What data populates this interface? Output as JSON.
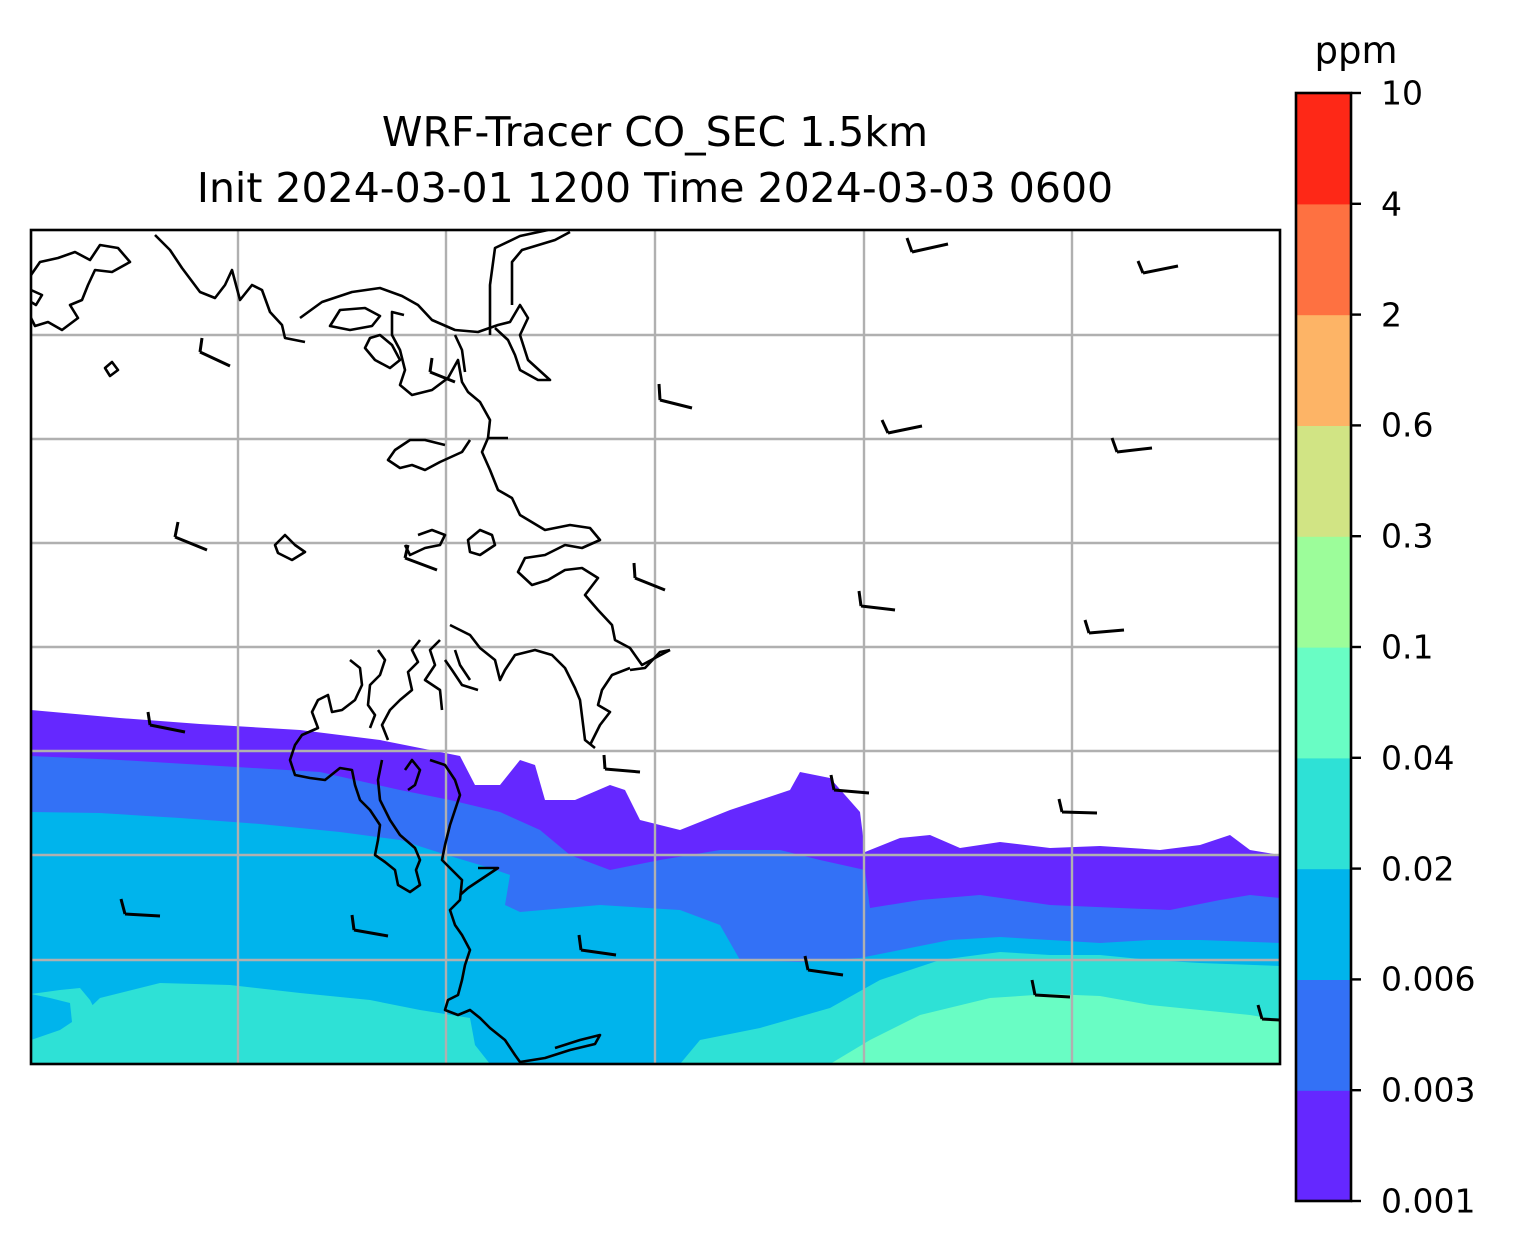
{
  "title": {
    "line1": "WRF-Tracer CO_SEC 1.5km",
    "line2": "Init 2024-03-01 1200 Time 2024-03-03 0600"
  },
  "colorbar": {
    "unit": "ppm",
    "levels": [
      {
        "label": "0.001",
        "color": "#6528ff"
      },
      {
        "label": "0.003",
        "color": "#3371f6"
      },
      {
        "label": "0.006",
        "color": "#00b4ec"
      },
      {
        "label": "0.02",
        "color": "#2ee1d6"
      },
      {
        "label": "0.04",
        "color": "#69fdc4"
      },
      {
        "label": "0.1",
        "color": "#9cfd9a"
      },
      {
        "label": "0.3",
        "color": "#d1e484"
      },
      {
        "label": "0.6",
        "color": "#fdb466"
      },
      {
        "label": "2",
        "color": "#fe7141"
      },
      {
        "label": "4",
        "color": "#fe2817"
      },
      {
        "label": "10",
        "color": null
      }
    ]
  },
  "map": {
    "gridlines": true,
    "grid_color": "#b0b0b0",
    "coastline_color": "#000000",
    "wind_barbs": true,
    "colors": {
      "band1": "#6528ff",
      "band2": "#3371f6",
      "band3": "#00b4ec",
      "band4": "#2ee1d6",
      "band5": "#69fdc4"
    }
  }
}
